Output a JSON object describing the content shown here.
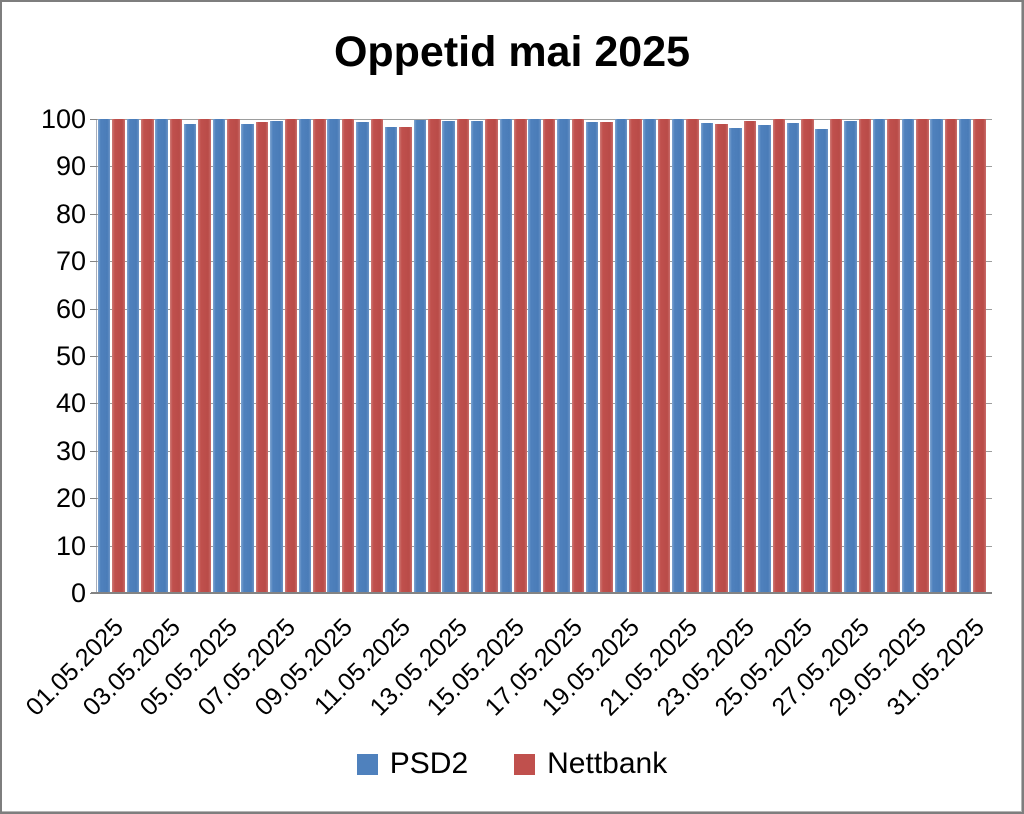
{
  "chart_data": {
    "type": "bar",
    "title": "Oppetid mai 2025",
    "ylim": [
      0,
      100
    ],
    "ytick_step": 10,
    "yticks": [
      "100",
      "90",
      "80",
      "70",
      "60",
      "50",
      "40",
      "30",
      "20",
      "10",
      "0"
    ],
    "grid": "horizontal",
    "legend_position": "bottom",
    "n_groups": 31,
    "x_tick_labels": [
      "01.05.2025",
      "03.05.2025",
      "05.05.2025",
      "07.05.2025",
      "09.05.2025",
      "11.05.2025",
      "13.05.2025",
      "15.05.2025",
      "17.05.2025",
      "19.05.2025",
      "21.05.2025",
      "23.05.2025",
      "25.05.2025",
      "27.05.2025",
      "29.05.2025",
      "31.05.2025"
    ],
    "series": [
      {
        "name": "PSD2",
        "color": "#4F81BD",
        "values": [
          100,
          100,
          100,
          99,
          100,
          99,
          99.5,
          100,
          100,
          99.4,
          98.4,
          99.8,
          99.6,
          99.6,
          100,
          100,
          100,
          99.4,
          100,
          100,
          100,
          99.2,
          98,
          98.8,
          99.1,
          97.9,
          99.5,
          100,
          100,
          100,
          100
        ]
      },
      {
        "name": "Nettbank",
        "color": "#C0504D",
        "values": [
          100,
          100,
          100,
          100,
          100,
          99.3,
          100,
          100,
          100,
          100,
          98.3,
          100,
          100,
          100,
          100,
          100,
          100,
          99.4,
          100,
          100,
          100,
          99,
          99.6,
          100,
          100,
          100,
          100,
          100,
          100,
          100,
          100
        ]
      }
    ]
  }
}
